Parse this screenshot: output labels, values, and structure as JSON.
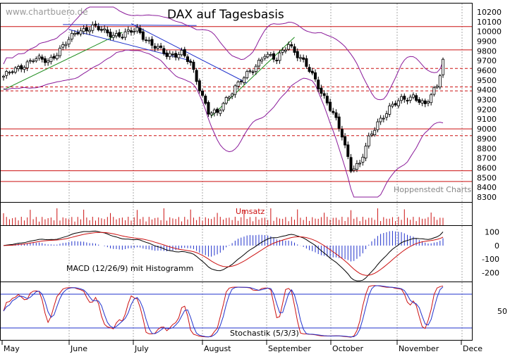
{
  "chart_data": [
    {
      "type": "candlestick",
      "title": "DAX auf Tagesbasis",
      "watermark": "www.chartbuero.de",
      "source_label": "Hoppenstedt Charts",
      "ylim": [
        8300,
        10250
      ],
      "y_ticks": [
        10200,
        10100,
        10000,
        9900,
        9800,
        9700,
        9600,
        9500,
        9400,
        9300,
        9200,
        9100,
        9000,
        8900,
        8800,
        8700,
        8600,
        8500,
        8400,
        8300
      ],
      "x_months": [
        "May",
        "June",
        "July",
        "August",
        "September",
        "October",
        "November",
        "Dece"
      ],
      "horizontal_levels_solid": [
        10050,
        9810,
        9000,
        8570,
        8460
      ],
      "horizontal_levels_dashed": [
        9620,
        9430,
        9390,
        8930
      ],
      "close_anchors": [
        [
          0,
          9540
        ],
        [
          5,
          9620
        ],
        [
          10,
          9720
        ],
        [
          15,
          9690
        ],
        [
          20,
          9850
        ],
        [
          25,
          10000
        ],
        [
          30,
          10050
        ],
        [
          35,
          9980
        ],
        [
          40,
          9960
        ],
        [
          45,
          10020
        ],
        [
          50,
          9860
        ],
        [
          55,
          9760
        ],
        [
          60,
          9780
        ],
        [
          63,
          9660
        ],
        [
          66,
          9420
        ],
        [
          69,
          9180
        ],
        [
          72,
          9150
        ],
        [
          75,
          9300
        ],
        [
          78,
          9440
        ],
        [
          80,
          9500
        ],
        [
          84,
          9600
        ],
        [
          88,
          9780
        ],
        [
          92,
          9700
        ],
        [
          96,
          9880
        ],
        [
          100,
          9720
        ],
        [
          102,
          9640
        ],
        [
          105,
          9500
        ],
        [
          108,
          9330
        ],
        [
          111,
          9150
        ],
        [
          114,
          8930
        ],
        [
          117,
          8600
        ],
        [
          120,
          8640
        ],
        [
          123,
          8890
        ],
        [
          126,
          9070
        ],
        [
          130,
          9210
        ],
        [
          134,
          9300
        ],
        [
          138,
          9340
        ],
        [
          142,
          9230
        ],
        [
          144,
          9350
        ],
        [
          146,
          9450
        ],
        [
          148,
          9720
        ]
      ],
      "bollinger_offset": 250,
      "colors": {
        "candle": "#000000",
        "bollinger": "#8a1a9a",
        "trend_blue": "#2233cc",
        "trend_green": "#1a8a1a",
        "red_level": "#cc1111",
        "grid": "#aaaaaa"
      }
    },
    {
      "type": "bar",
      "title": "Umsatz",
      "color": "#cc1111"
    },
    {
      "type": "line",
      "title": "MACD (12/26/9) mit Histogramm",
      "y_ticks": [
        "100",
        "0",
        "-100",
        "-200"
      ],
      "ylim": [
        -260,
        140
      ],
      "series": [
        {
          "name": "MACD",
          "color": "#000000"
        },
        {
          "name": "Signal",
          "color": "#cc1111"
        },
        {
          "name": "Histogramm",
          "color": "#2233cc"
        }
      ]
    },
    {
      "type": "line",
      "title": "Stochastik (5/3/3)",
      "y_ticks": [
        "50"
      ],
      "ylim": [
        0,
        100
      ],
      "series": [
        {
          "name": "%K",
          "color": "#cc1111"
        },
        {
          "name": "%D",
          "color": "#2233cc"
        }
      ]
    }
  ]
}
